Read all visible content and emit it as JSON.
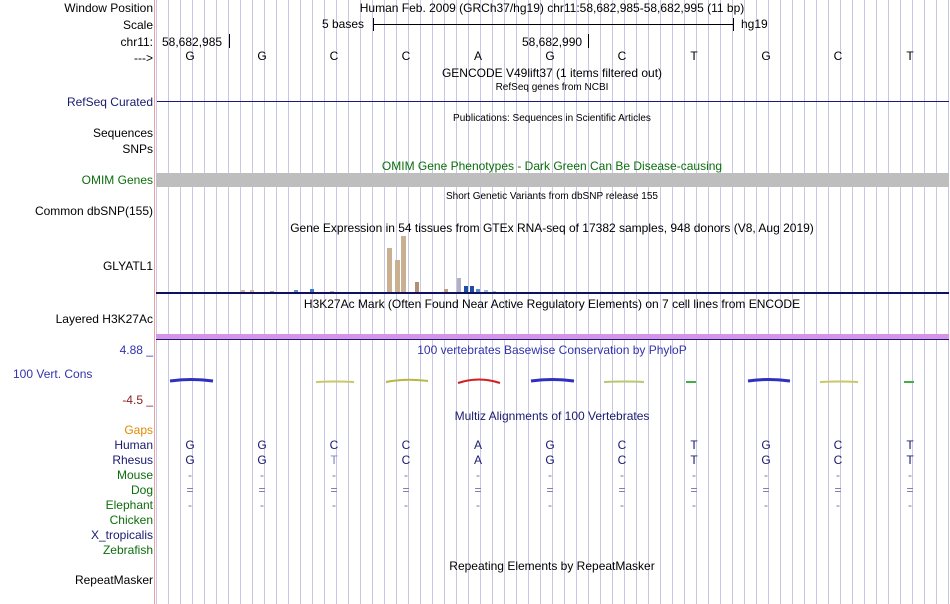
{
  "header": {
    "window_position_label": "Window Position",
    "assembly_title": "Human Feb. 2009 (GRCh37/hg19)   chr11:58,682,985-58,682,995 (11 bp)",
    "scale_label": "Scale",
    "scale_value": "5 bases",
    "scale_assembly": "hg19",
    "chrom_label": "chr11:",
    "pos_left": "58,682,985",
    "pos_mid": "58,682,990",
    "strand_label": "--->"
  },
  "bases": [
    "G",
    "G",
    "C",
    "C",
    "A",
    "G",
    "C",
    "T",
    "G",
    "C",
    "T"
  ],
  "tracks": {
    "gencode_title": "GENCODE V49lift37 (1 items filtered out)",
    "refseq_subtitle": "RefSeq genes from NCBI",
    "refseq_label": "RefSeq Curated",
    "publications_title": "Publications: Sequences in Scientific Articles",
    "sequences_label": "Sequences",
    "snps_label": "SNPs",
    "omim_title": "OMIM Gene Phenotypes - Dark Green Can Be Disease-causing",
    "omim_label": "OMIM Genes",
    "dbsnp_title": "Short Genetic Variants from dbSNP release 155",
    "dbsnp_label": "Common dbSNP(155)",
    "gtex_title": "Gene Expression in 54 tissues from GTEx RNA-seq of 17382 samples, 948 donors (V8, Aug 2019)",
    "gtex_label": "GLYATL1",
    "h3k27ac_title": "H3K27Ac Mark (Often Found Near Active Regulatory Elements) on 7 cell lines from ENCODE",
    "h3k27ac_label": "Layered H3K27Ac",
    "phylop_max": "4.88 _",
    "phylop_title": "100 vertebrates Basewise Conservation by PhyloP",
    "phylop_label": "100 Vert. Cons",
    "phylop_min": "-4.5 _",
    "multiz_title": "Multiz Alignments of 100 Vertebrates",
    "repeatmasker_title": "Repeating Elements by RepeatMasker",
    "repeatmasker_label": "RepeatMasker"
  },
  "species": [
    {
      "name": "Gaps",
      "color": "#e08a00",
      "row": [
        "",
        "",
        "",
        "",
        "",
        "",
        "",
        "",
        "",
        "",
        ""
      ]
    },
    {
      "name": "Human",
      "color": "#1a1a6e",
      "row": [
        "G",
        "G",
        "C",
        "C",
        "A",
        "G",
        "C",
        "T",
        "G",
        "C",
        "T"
      ]
    },
    {
      "name": "Rhesus",
      "color": "#1a1a6e",
      "row": [
        "G",
        "G",
        "T",
        "C",
        "A",
        "G",
        "C",
        "T",
        "G",
        "C",
        "T"
      ]
    },
    {
      "name": "Mouse",
      "color": "#0b6e0b",
      "row": [
        "-",
        "-",
        "-",
        "-",
        "-",
        "-",
        "-",
        "-",
        "-",
        "-",
        "-"
      ]
    },
    {
      "name": "Dog",
      "color": "#0b6e0b",
      "row": [
        "=",
        "=",
        "=",
        "=",
        "=",
        "=",
        "=",
        "=",
        "=",
        "=",
        "="
      ]
    },
    {
      "name": "Elephant",
      "color": "#0b6e0b",
      "row": [
        "-",
        "-",
        "-",
        "-",
        "-",
        "-",
        "-",
        "-",
        "-",
        "-",
        "-"
      ]
    },
    {
      "name": "Chicken",
      "color": "#0b6e0b",
      "row": [
        "",
        "",
        "",
        "",
        "",
        "",
        "",
        "",
        "",
        "",
        ""
      ]
    },
    {
      "name": "X_tropicalis",
      "color": "#1a1a6e",
      "row": [
        "",
        "",
        "",
        "",
        "",
        "",
        "",
        "",
        "",
        "",
        ""
      ]
    },
    {
      "name": "Zebrafish",
      "color": "#0b6e0b",
      "row": [
        "",
        "",
        "",
        "",
        "",
        "",
        "",
        "",
        "",
        "",
        ""
      ]
    }
  ],
  "gtex_bars": [
    {
      "v": 0.03,
      "c": "#d4b894"
    },
    {
      "v": 0.03,
      "c": "#d4b894"
    },
    {
      "v": 0.02,
      "c": "#c8a080"
    },
    {
      "v": 0.04,
      "c": "#5a8cd0"
    },
    {
      "v": 0.05,
      "c": "#3c78c8"
    },
    {
      "v": 0.02,
      "c": "#c8b8a0"
    },
    {
      "v": 0.78,
      "c": "#c8b090"
    },
    {
      "v": 0.58,
      "c": "#c8b090"
    },
    {
      "v": 1.0,
      "c": "#c8b090"
    },
    {
      "v": 0.18,
      "c": "#b09070"
    },
    {
      "v": 0.05,
      "c": "#c0a080"
    },
    {
      "v": 0.25,
      "c": "#b0b0c8"
    },
    {
      "v": 0.1,
      "c": "#1f4ea0"
    },
    {
      "v": 0.1,
      "c": "#1f4ea0"
    },
    {
      "v": 0.06,
      "c": "#5a8cd0"
    },
    {
      "v": 0.03,
      "c": "#a0b8e0"
    },
    {
      "v": 0.02,
      "c": "#c0c0c0"
    }
  ]
}
